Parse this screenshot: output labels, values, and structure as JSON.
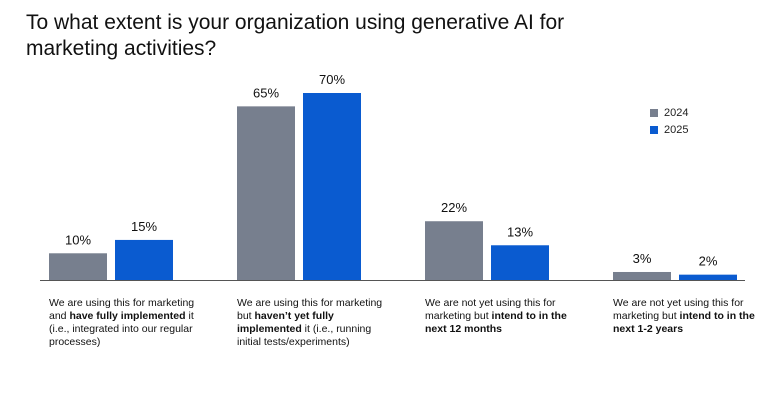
{
  "chart_data": {
    "type": "bar",
    "title": "To what extent is your organization using generative AI for marketing activities?",
    "categories": [
      {
        "parts": [
          {
            "text": "We are using this for marketing and ",
            "bold": false
          },
          {
            "text": "have fully implemented",
            "bold": true
          },
          {
            "text": " it (i.e., integrated into our regular processes)",
            "bold": false
          }
        ]
      },
      {
        "parts": [
          {
            "text": "We are using this for marketing but ",
            "bold": false
          },
          {
            "text": "haven’t yet fully implemented",
            "bold": true
          },
          {
            "text": " it (i.e., running initial tests/experiments)",
            "bold": false
          }
        ]
      },
      {
        "parts": [
          {
            "text": "We are not yet using this for marketing but ",
            "bold": false
          },
          {
            "text": "intend to in the next 12 months",
            "bold": true
          }
        ]
      },
      {
        "parts": [
          {
            "text": "We are not yet using this for marketing but ",
            "bold": false
          },
          {
            "text": "intend to in the next 1-2 years",
            "bold": true
          }
        ]
      }
    ],
    "series": [
      {
        "name": "2024",
        "color": "#777f8e",
        "values": [
          10,
          65,
          22,
          3
        ],
        "labels": [
          "10%",
          "65%",
          "22%",
          "3%"
        ]
      },
      {
        "name": "2025",
        "color": "#0a5bd0",
        "values": [
          15,
          70,
          13,
          2
        ],
        "labels": [
          "15%",
          "70%",
          "13%",
          "2%"
        ]
      }
    ],
    "ylim": [
      0,
      70
    ],
    "legend_position": "top-right",
    "grid": false
  }
}
